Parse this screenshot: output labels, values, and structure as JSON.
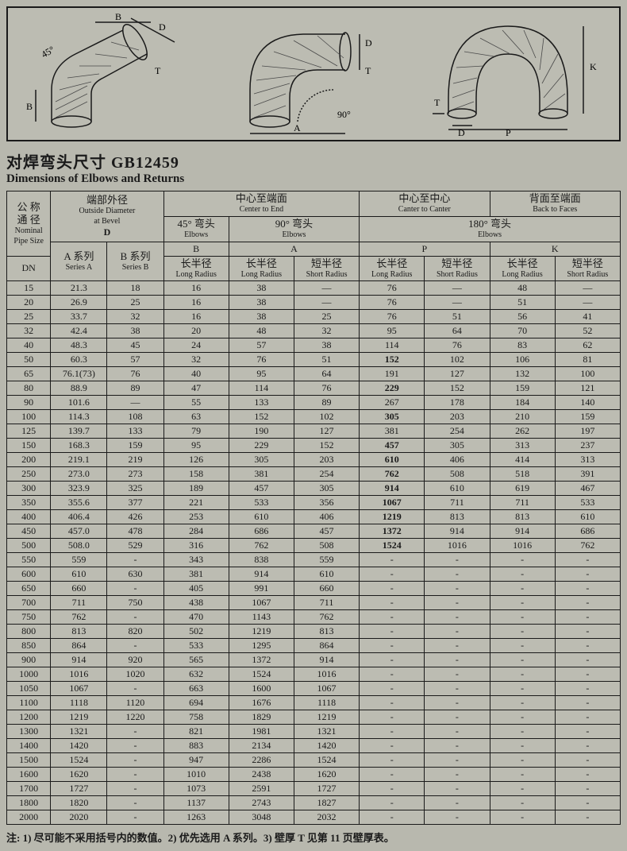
{
  "title": {
    "cn": "对焊弯头尺寸  GB12459",
    "en": "Dimensions of Elbows and Returns"
  },
  "headers": {
    "nominal_cn": "公 称\n通 径",
    "nominal_en": "Nominal\nPipe Size",
    "dn": "DN",
    "od_cn": "端部外径",
    "od_en": "Outside Diameter\nat Bevel",
    "od_sym": "D",
    "seriesA_cn": "A 系列",
    "seriesA_en": "Series A",
    "seriesB_cn": "B 系列",
    "seriesB_en": "Series B",
    "cte_cn": "中心至端面",
    "cte_en": "Center to End",
    "ctc_cn": "中心至中心",
    "ctc_en": "Canter to Canter",
    "btf_cn": "背面至端面",
    "btf_en": "Back to Faces",
    "e45_cn": "45° 弯头",
    "e45_en": "Elbows",
    "e90_cn": "90° 弯头",
    "e90_en": "Elbows",
    "e180_cn": "180° 弯头",
    "e180_en": "Elbows",
    "B": "B",
    "A": "A",
    "P": "P",
    "K": "K",
    "lr_cn": "长半径",
    "lr_en": "Long Radius",
    "sr_cn": "短半径",
    "sr_en": "Short Radius"
  },
  "rows": [
    {
      "dn": "15",
      "sa": "21.3",
      "sb": "18",
      "b": "16",
      "alr": "38",
      "asr": "—",
      "plr": "76",
      "psr": "—",
      "klr": "48",
      "ksr": "—",
      "bold": false
    },
    {
      "dn": "20",
      "sa": "26.9",
      "sb": "25",
      "b": "16",
      "alr": "38",
      "asr": "—",
      "plr": "76",
      "psr": "—",
      "klr": "51",
      "ksr": "—",
      "bold": false
    },
    {
      "dn": "25",
      "sa": "33.7",
      "sb": "32",
      "b": "16",
      "alr": "38",
      "asr": "25",
      "plr": "76",
      "psr": "51",
      "klr": "56",
      "ksr": "41",
      "bold": false
    },
    {
      "dn": "32",
      "sa": "42.4",
      "sb": "38",
      "b": "20",
      "alr": "48",
      "asr": "32",
      "plr": "95",
      "psr": "64",
      "klr": "70",
      "ksr": "52",
      "bold": false
    },
    {
      "dn": "40",
      "sa": "48.3",
      "sb": "45",
      "b": "24",
      "alr": "57",
      "asr": "38",
      "plr": "114",
      "psr": "76",
      "klr": "83",
      "ksr": "62",
      "bold": false
    },
    {
      "dn": "50",
      "sa": "60.3",
      "sb": "57",
      "b": "32",
      "alr": "76",
      "asr": "51",
      "plr": "152",
      "psr": "102",
      "klr": "106",
      "ksr": "81",
      "bold": true
    },
    {
      "dn": "65",
      "sa": "76.1(73)",
      "sb": "76",
      "b": "40",
      "alr": "95",
      "asr": "64",
      "plr": "191",
      "psr": "127",
      "klr": "132",
      "ksr": "100",
      "bold": false
    },
    {
      "dn": "80",
      "sa": "88.9",
      "sb": "89",
      "b": "47",
      "alr": "114",
      "asr": "76",
      "plr": "229",
      "psr": "152",
      "klr": "159",
      "ksr": "121",
      "bold": true
    },
    {
      "dn": "90",
      "sa": "101.6",
      "sb": "—",
      "b": "55",
      "alr": "133",
      "asr": "89",
      "plr": "267",
      "psr": "178",
      "klr": "184",
      "ksr": "140",
      "bold": false
    },
    {
      "dn": "100",
      "sa": "114.3",
      "sb": "108",
      "b": "63",
      "alr": "152",
      "asr": "102",
      "plr": "305",
      "psr": "203",
      "klr": "210",
      "ksr": "159",
      "bold": true
    },
    {
      "dn": "125",
      "sa": "139.7",
      "sb": "133",
      "b": "79",
      "alr": "190",
      "asr": "127",
      "plr": "381",
      "psr": "254",
      "klr": "262",
      "ksr": "197",
      "bold": false
    },
    {
      "dn": "150",
      "sa": "168.3",
      "sb": "159",
      "b": "95",
      "alr": "229",
      "asr": "152",
      "plr": "457",
      "psr": "305",
      "klr": "313",
      "ksr": "237",
      "bold": true
    },
    {
      "dn": "200",
      "sa": "219.1",
      "sb": "219",
      "b": "126",
      "alr": "305",
      "asr": "203",
      "plr": "610",
      "psr": "406",
      "klr": "414",
      "ksr": "313",
      "bold": true
    },
    {
      "dn": "250",
      "sa": "273.0",
      "sb": "273",
      "b": "158",
      "alr": "381",
      "asr": "254",
      "plr": "762",
      "psr": "508",
      "klr": "518",
      "ksr": "391",
      "bold": true
    },
    {
      "dn": "300",
      "sa": "323.9",
      "sb": "325",
      "b": "189",
      "alr": "457",
      "asr": "305",
      "plr": "914",
      "psr": "610",
      "klr": "619",
      "ksr": "467",
      "bold": true
    },
    {
      "dn": "350",
      "sa": "355.6",
      "sb": "377",
      "b": "221",
      "alr": "533",
      "asr": "356",
      "plr": "1067",
      "psr": "711",
      "klr": "711",
      "ksr": "533",
      "bold": true
    },
    {
      "dn": "400",
      "sa": "406.4",
      "sb": "426",
      "b": "253",
      "alr": "610",
      "asr": "406",
      "plr": "1219",
      "psr": "813",
      "klr": "813",
      "ksr": "610",
      "bold": true
    },
    {
      "dn": "450",
      "sa": "457.0",
      "sb": "478",
      "b": "284",
      "alr": "686",
      "asr": "457",
      "plr": "1372",
      "psr": "914",
      "klr": "914",
      "ksr": "686",
      "bold": true
    },
    {
      "dn": "500",
      "sa": "508.0",
      "sb": "529",
      "b": "316",
      "alr": "762",
      "asr": "508",
      "plr": "1524",
      "psr": "1016",
      "klr": "1016",
      "ksr": "762",
      "bold": true
    },
    {
      "dn": "550",
      "sa": "559",
      "sb": "-",
      "b": "343",
      "alr": "838",
      "asr": "559",
      "plr": "-",
      "psr": "-",
      "klr": "-",
      "ksr": "-",
      "bold": false
    },
    {
      "dn": "600",
      "sa": "610",
      "sb": "630",
      "b": "381",
      "alr": "914",
      "asr": "610",
      "plr": "-",
      "psr": "-",
      "klr": "-",
      "ksr": "-",
      "bold": false
    },
    {
      "dn": "650",
      "sa": "660",
      "sb": "-",
      "b": "405",
      "alr": "991",
      "asr": "660",
      "plr": "-",
      "psr": "-",
      "klr": "-",
      "ksr": "-",
      "bold": false
    },
    {
      "dn": "700",
      "sa": "711",
      "sb": "750",
      "b": "438",
      "alr": "1067",
      "asr": "711",
      "plr": "-",
      "psr": "-",
      "klr": "-",
      "ksr": "-",
      "bold": false
    },
    {
      "dn": "750",
      "sa": "762",
      "sb": "-",
      "b": "470",
      "alr": "1143",
      "asr": "762",
      "plr": "-",
      "psr": "-",
      "klr": "-",
      "ksr": "-",
      "bold": false
    },
    {
      "dn": "800",
      "sa": "813",
      "sb": "820",
      "b": "502",
      "alr": "1219",
      "asr": "813",
      "plr": "-",
      "psr": "-",
      "klr": "-",
      "ksr": "-",
      "bold": false
    },
    {
      "dn": "850",
      "sa": "864",
      "sb": "-",
      "b": "533",
      "alr": "1295",
      "asr": "864",
      "plr": "-",
      "psr": "-",
      "klr": "-",
      "ksr": "-",
      "bold": false
    },
    {
      "dn": "900",
      "sa": "914",
      "sb": "920",
      "b": "565",
      "alr": "1372",
      "asr": "914",
      "plr": "-",
      "psr": "-",
      "klr": "-",
      "ksr": "-",
      "bold": false
    },
    {
      "dn": "1000",
      "sa": "1016",
      "sb": "1020",
      "b": "632",
      "alr": "1524",
      "asr": "1016",
      "plr": "-",
      "psr": "-",
      "klr": "-",
      "ksr": "-",
      "bold": false
    },
    {
      "dn": "1050",
      "sa": "1067",
      "sb": "-",
      "b": "663",
      "alr": "1600",
      "asr": "1067",
      "plr": "-",
      "psr": "-",
      "klr": "-",
      "ksr": "-",
      "bold": false
    },
    {
      "dn": "1100",
      "sa": "1118",
      "sb": "1120",
      "b": "694",
      "alr": "1676",
      "asr": "1118",
      "plr": "-",
      "psr": "-",
      "klr": "-",
      "ksr": "-",
      "bold": false
    },
    {
      "dn": "1200",
      "sa": "1219",
      "sb": "1220",
      "b": "758",
      "alr": "1829",
      "asr": "1219",
      "plr": "-",
      "psr": "-",
      "klr": "-",
      "ksr": "-",
      "bold": false
    },
    {
      "dn": "1300",
      "sa": "1321",
      "sb": "-",
      "b": "821",
      "alr": "1981",
      "asr": "1321",
      "plr": "-",
      "psr": "-",
      "klr": "-",
      "ksr": "-",
      "bold": false
    },
    {
      "dn": "1400",
      "sa": "1420",
      "sb": "-",
      "b": "883",
      "alr": "2134",
      "asr": "1420",
      "plr": "-",
      "psr": "-",
      "klr": "-",
      "ksr": "-",
      "bold": false
    },
    {
      "dn": "1500",
      "sa": "1524",
      "sb": "-",
      "b": "947",
      "alr": "2286",
      "asr": "1524",
      "plr": "-",
      "psr": "-",
      "klr": "-",
      "ksr": "-",
      "bold": false
    },
    {
      "dn": "1600",
      "sa": "1620",
      "sb": "-",
      "b": "1010",
      "alr": "2438",
      "asr": "1620",
      "plr": "-",
      "psr": "-",
      "klr": "-",
      "ksr": "-",
      "bold": false
    },
    {
      "dn": "1700",
      "sa": "1727",
      "sb": "-",
      "b": "1073",
      "alr": "2591",
      "asr": "1727",
      "plr": "-",
      "psr": "-",
      "klr": "-",
      "ksr": "-",
      "bold": false
    },
    {
      "dn": "1800",
      "sa": "1820",
      "sb": "-",
      "b": "1137",
      "alr": "2743",
      "asr": "1827",
      "plr": "-",
      "psr": "-",
      "klr": "-",
      "ksr": "-",
      "bold": false
    },
    {
      "dn": "2000",
      "sa": "2020",
      "sb": "-",
      "b": "1263",
      "alr": "3048",
      "asr": "2032",
      "plr": "-",
      "psr": "-",
      "klr": "-",
      "ksr": "-",
      "bold": false
    }
  ],
  "footnote": "注: 1) 尽可能不采用括号内的数值。2) 优先选用 A 系列。3) 壁厚 T 见第 11 页壁厚表。",
  "diagrams": {
    "labels": {
      "d45": "45°",
      "d90": "90°",
      "B": "B",
      "D": "D",
      "A": "A",
      "T": "T",
      "P": "P",
      "K": "K"
    },
    "stroke": "#1a1a1a",
    "hatch": "#4a4a4a"
  }
}
